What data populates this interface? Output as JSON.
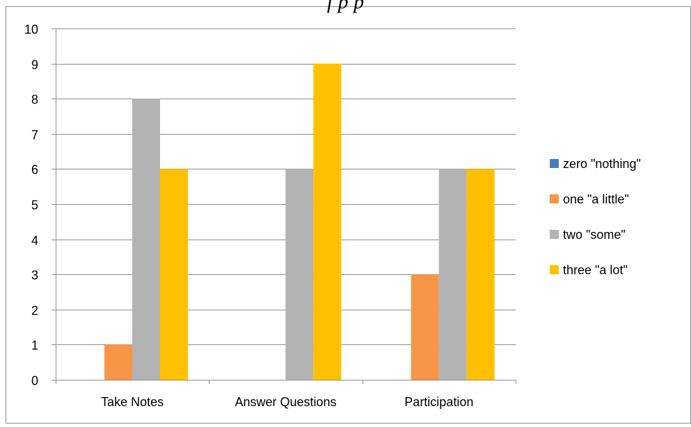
{
  "chart_data": {
    "type": "bar",
    "title_fragment": "f           p              p",
    "categories": [
      "Take Notes",
      "Answer Questions",
      "Participation"
    ],
    "series": [
      {
        "name": "zero \"nothing\"",
        "color": "#4a7ebb",
        "values": [
          0,
          0,
          0
        ]
      },
      {
        "name": "one \"a little\"",
        "color": "#f79646",
        "values": [
          1,
          0,
          3
        ]
      },
      {
        "name": "two \"some\"",
        "color": "#b3b3b3",
        "values": [
          8,
          6,
          6
        ]
      },
      {
        "name": "three \"a lot\"",
        "color": "#ffc000",
        "values": [
          6,
          9,
          6
        ]
      }
    ],
    "ylim": [
      0,
      10
    ],
    "yticks": [
      "0",
      "1",
      "2",
      "3",
      "4",
      "5",
      "6",
      "7",
      "8",
      "9",
      "10"
    ],
    "grid": true,
    "legend_position": "right"
  }
}
